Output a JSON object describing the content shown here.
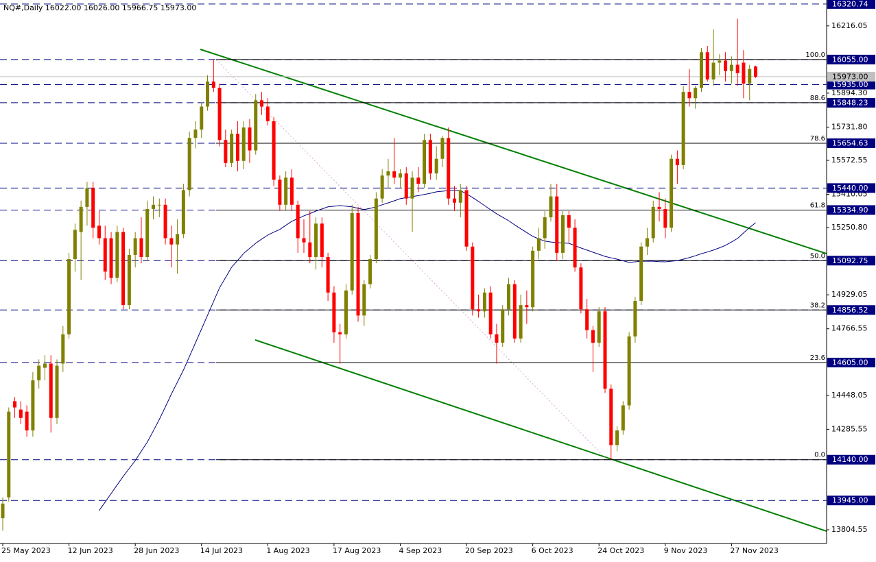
{
  "chart_data": {
    "type": "candlestick",
    "title": "NQ#,Daily  16022.00 16026.00 15966.75 15973.00",
    "categories": [
      "25 May 2023",
      null,
      null,
      null,
      null,
      null,
      null,
      null,
      null,
      null,
      null,
      "12 Jun 2023",
      null,
      null,
      null,
      null,
      null,
      null,
      null,
      null,
      null,
      null,
      "28 Jun 2023",
      null,
      null,
      null,
      null,
      null,
      null,
      null,
      null,
      null,
      null,
      "14 Jul 2023",
      null,
      null,
      null,
      null,
      null,
      null,
      null,
      null,
      null,
      null,
      "1 Aug 2023",
      null,
      null,
      null,
      null,
      null,
      null,
      null,
      null,
      null,
      null,
      "17 Aug 2023",
      null,
      null,
      null,
      null,
      null,
      null,
      null,
      null,
      null,
      null,
      "4 Sep 2023",
      null,
      null,
      null,
      null,
      null,
      null,
      null,
      null,
      null,
      null,
      "20 Sep 2023",
      null,
      null,
      null,
      null,
      null,
      null,
      null,
      null,
      null,
      null,
      "6 Oct 2023",
      null,
      null,
      null,
      null,
      null,
      null,
      null,
      null,
      null,
      null,
      "24 Oct 2023",
      null,
      null,
      null,
      null,
      null,
      null,
      null,
      null,
      null,
      null,
      "9 Nov 2023",
      null,
      null,
      null,
      null,
      null,
      null,
      null,
      null,
      null,
      null,
      "27 Nov 2023",
      null,
      null,
      null,
      null
    ],
    "ohlc": [
      [
        13860,
        13960,
        13800,
        13930
      ],
      [
        13960,
        14390,
        13940,
        14370
      ],
      [
        14420,
        14440,
        14340,
        14390
      ],
      [
        14380,
        14420,
        14310,
        14340
      ],
      [
        14370,
        14400,
        14250,
        14280
      ],
      [
        14280,
        14560,
        14250,
        14520
      ],
      [
        14520,
        14620,
        14480,
        14590
      ],
      [
        14580,
        14640,
        14520,
        14600
      ],
      [
        14600,
        14640,
        14270,
        14340
      ],
      [
        14340,
        14620,
        14310,
        14590
      ],
      [
        14600,
        14780,
        14560,
        14740
      ],
      [
        14740,
        15130,
        14720,
        15100
      ],
      [
        15100,
        15270,
        15040,
        15240
      ],
      [
        15230,
        15380,
        15000,
        15350
      ],
      [
        15350,
        15470,
        15260,
        15440
      ],
      [
        15440,
        15470,
        15200,
        15250
      ],
      [
        15260,
        15330,
        15170,
        15200
      ],
      [
        15200,
        15260,
        15000,
        15040
      ],
      [
        15200,
        15230,
        14980,
        15010
      ],
      [
        15010,
        15260,
        14990,
        15230
      ],
      [
        15230,
        15250,
        14860,
        14880
      ],
      [
        14880,
        15150,
        14860,
        15120
      ],
      [
        15120,
        15230,
        15060,
        15200
      ],
      [
        15200,
        15300,
        15080,
        15110
      ],
      [
        15110,
        15380,
        15090,
        15340
      ],
      [
        15340,
        15400,
        15290,
        15360
      ],
      [
        15360,
        15390,
        15300,
        15360
      ],
      [
        15360,
        15390,
        15170,
        15200
      ],
      [
        15200,
        15260,
        15060,
        15170
      ],
      [
        15170,
        15290,
        15030,
        15220
      ],
      [
        15220,
        15460,
        15200,
        15430
      ],
      [
        15430,
        15710,
        15400,
        15680
      ],
      [
        15680,
        15760,
        15630,
        15720
      ],
      [
        15720,
        15850,
        15680,
        15830
      ],
      [
        15830,
        15980,
        15810,
        15950
      ],
      [
        15950,
        16055,
        15900,
        15920
      ],
      [
        15920,
        15940,
        15640,
        15670
      ],
      [
        15670,
        15720,
        15540,
        15560
      ],
      [
        15560,
        15720,
        15540,
        15700
      ],
      [
        15700,
        15760,
        15520,
        15570
      ],
      [
        15570,
        15760,
        15530,
        15730
      ],
      [
        15730,
        15770,
        15560,
        15620
      ],
      [
        15620,
        15890,
        15600,
        15860
      ],
      [
        15860,
        15900,
        15790,
        15830
      ],
      [
        15830,
        15870,
        15740,
        15760
      ],
      [
        15760,
        15780,
        15450,
        15480
      ],
      [
        15480,
        15500,
        15330,
        15360
      ],
      [
        15360,
        15520,
        15330,
        15490
      ],
      [
        15490,
        15530,
        15330,
        15360
      ],
      [
        15360,
        15380,
        15130,
        15200
      ],
      [
        15200,
        15290,
        15130,
        15180
      ],
      [
        15180,
        15330,
        15080,
        15110
      ],
      [
        15110,
        15300,
        15050,
        15270
      ],
      [
        15270,
        15300,
        15060,
        15110
      ],
      [
        15110,
        15130,
        14900,
        14940
      ],
      [
        14940,
        14970,
        14700,
        14750
      ],
      [
        14750,
        14790,
        14600,
        14740
      ],
      [
        14740,
        14980,
        14720,
        14950
      ],
      [
        14950,
        15360,
        14930,
        15320
      ],
      [
        15320,
        15350,
        14800,
        14830
      ],
      [
        14830,
        15000,
        14780,
        14980
      ],
      [
        14980,
        15120,
        14960,
        15100
      ],
      [
        15100,
        15420,
        15080,
        15390
      ],
      [
        15390,
        15530,
        15370,
        15500
      ],
      [
        15500,
        15580,
        15440,
        15520
      ],
      [
        15520,
        15680,
        15460,
        15490
      ],
      [
        15490,
        15530,
        15440,
        15510
      ],
      [
        15510,
        15540,
        15360,
        15390
      ],
      [
        15390,
        15520,
        15230,
        15490
      ],
      [
        15490,
        15540,
        15420,
        15460
      ],
      [
        15460,
        15700,
        15440,
        15670
      ],
      [
        15670,
        15700,
        15480,
        15510
      ],
      [
        15510,
        15640,
        15480,
        15580
      ],
      [
        15580,
        15690,
        15540,
        15680
      ],
      [
        15680,
        15730,
        15360,
        15390
      ],
      [
        15390,
        15450,
        15330,
        15370
      ],
      [
        15370,
        15460,
        15300,
        15430
      ],
      [
        15430,
        15450,
        15140,
        15160
      ],
      [
        15160,
        15180,
        14830,
        14860
      ],
      [
        14860,
        14930,
        14820,
        14850
      ],
      [
        14850,
        14960,
        14820,
        14940
      ],
      [
        14940,
        14970,
        14720,
        14740
      ],
      [
        14740,
        14790,
        14600,
        14700
      ],
      [
        14700,
        14880,
        14680,
        14860
      ],
      [
        14860,
        15010,
        14830,
        14980
      ],
      [
        14980,
        15000,
        14700,
        14720
      ],
      [
        14720,
        14930,
        14700,
        14880
      ],
      [
        14880,
        14950,
        14790,
        14870
      ],
      [
        14870,
        15160,
        14850,
        15140
      ],
      [
        15140,
        15250,
        15100,
        15200
      ],
      [
        15200,
        15330,
        15150,
        15300
      ],
      [
        15300,
        15460,
        15280,
        15400
      ],
      [
        15400,
        15460,
        15090,
        15130
      ],
      [
        15130,
        15330,
        15100,
        15310
      ],
      [
        15310,
        15330,
        15180,
        15250
      ],
      [
        15250,
        15290,
        15040,
        15060
      ],
      [
        15060,
        15080,
        14840,
        14860
      ],
      [
        14860,
        14910,
        14720,
        14760
      ],
      [
        14760,
        14780,
        14560,
        14700
      ],
      [
        14700,
        14870,
        14680,
        14850
      ],
      [
        14850,
        14870,
        14460,
        14480
      ],
      [
        14480,
        14500,
        14140,
        14210
      ],
      [
        14210,
        14300,
        14180,
        14280
      ],
      [
        14280,
        14420,
        14260,
        14400
      ],
      [
        14400,
        14750,
        14380,
        14730
      ],
      [
        14730,
        14920,
        14700,
        14900
      ],
      [
        14900,
        15180,
        14880,
        15160
      ],
      [
        15160,
        15250,
        15120,
        15200
      ],
      [
        15200,
        15380,
        15180,
        15350
      ],
      [
        15350,
        15420,
        15280,
        15340
      ],
      [
        15340,
        15390,
        15200,
        15250
      ],
      [
        15250,
        15600,
        15230,
        15580
      ],
      [
        15580,
        15620,
        15460,
        15550
      ],
      [
        15550,
        15930,
        15530,
        15900
      ],
      [
        15900,
        16010,
        15830,
        15870
      ],
      [
        15870,
        15930,
        15820,
        15920
      ],
      [
        15920,
        16110,
        15900,
        16090
      ],
      [
        16090,
        16120,
        15950,
        15960
      ],
      [
        15960,
        16200,
        15930,
        16040
      ],
      [
        16040,
        16080,
        15980,
        16050
      ],
      [
        16050,
        16090,
        15950,
        16000
      ],
      [
        16000,
        16070,
        15940,
        16030
      ],
      [
        16030,
        16250,
        15930,
        15990
      ],
      [
        16040,
        16100,
        15870,
        15940
      ],
      [
        15940,
        16030,
        15860,
        16010
      ],
      [
        16022,
        16026,
        15966.75,
        15973
      ]
    ],
    "up_color": "#808000",
    "down_color": "#ff0000",
    "moving_average": {
      "color": "#000080",
      "values": [
        null,
        null,
        null,
        null,
        null,
        null,
        null,
        null,
        null,
        null,
        null,
        null,
        null,
        null,
        null,
        null,
        13897,
        13937,
        13978,
        14019,
        14060,
        14098,
        14136,
        14180,
        14224,
        14278,
        14333,
        14393,
        14454,
        14511,
        14569,
        14634,
        14700,
        14765,
        14831,
        14897,
        14963,
        15012,
        15061,
        15094,
        15127,
        15152,
        15176,
        15196,
        15215,
        15229,
        15242,
        15262,
        15281,
        15294,
        15307,
        15318,
        15330,
        15340,
        15350,
        15353,
        15356,
        15353,
        15350,
        15343,
        15337,
        15343,
        15350,
        15360,
        15369,
        15379,
        15389,
        15394,
        15399,
        15404,
        15409,
        15415,
        15422,
        15425,
        15428,
        15428,
        15428,
        15412,
        15395,
        15376,
        15356,
        15336,
        15317,
        15300,
        15284,
        15264,
        15245,
        15227,
        15209,
        15197,
        15186,
        15182,
        15179,
        15177,
        15176,
        15164,
        15153,
        15143,
        15133,
        15123,
        15113,
        15106,
        15100,
        15092,
        15084,
        15087,
        15090,
        15090,
        15090,
        15088,
        15087,
        15090,
        15093,
        15100,
        15107,
        15116,
        15126,
        15134,
        15143,
        15154,
        15166,
        15182,
        15199,
        15225,
        15251,
        15274
      ]
    },
    "ylim": [
      13739,
      16340
    ],
    "yticks": [
      16216.05,
      {
        "value": 15894.3,
        "label": "15894.30"
      },
      {
        "value": 15731.8,
        "label": "15731.80"
      },
      15572.55,
      15410.05,
      {
        "value": 15250.8,
        "label": "15250.80"
      },
      14929.05,
      14766.55,
      14448.05,
      14285.55,
      13804.55
    ],
    "levels": [
      {
        "value": 16320.74,
        "label": "16320.74"
      },
      {
        "value": 16055,
        "label": "16055.00"
      },
      {
        "value": 15935,
        "label": "15935.00"
      },
      {
        "value": 15848.23,
        "label": "15848.23"
      },
      {
        "value": 15654.63,
        "label": "15654.63"
      },
      {
        "value": 15440,
        "label": "15440.00"
      },
      {
        "value": 15334.9,
        "label": "15334.90"
      },
      {
        "value": 15092.75,
        "label": "15092.75"
      },
      {
        "value": 14856.52,
        "label": "14856.52"
      },
      {
        "value": 14605,
        "label": "14605.00"
      },
      {
        "value": 14140,
        "label": "14140.00"
      },
      {
        "value": 13945,
        "label": "13945.00"
      }
    ],
    "level_color": "#000080",
    "current_price": {
      "value": 15973,
      "label": "15973.00"
    },
    "fib_levels": [
      {
        "label": "100.0",
        "value": 16055
      },
      {
        "label": "88.6",
        "value": 15848.23
      },
      {
        "label": "78.6",
        "value": 15654.63
      },
      {
        "label": "61.8",
        "value": 15334.9
      },
      {
        "label": "50.0",
        "value": 15092.75
      },
      {
        "label": "38.2",
        "value": 14856.52
      },
      {
        "label": "23.6",
        "value": 14605
      },
      {
        "label": "0.0",
        "value": 14140
      }
    ]
  }
}
